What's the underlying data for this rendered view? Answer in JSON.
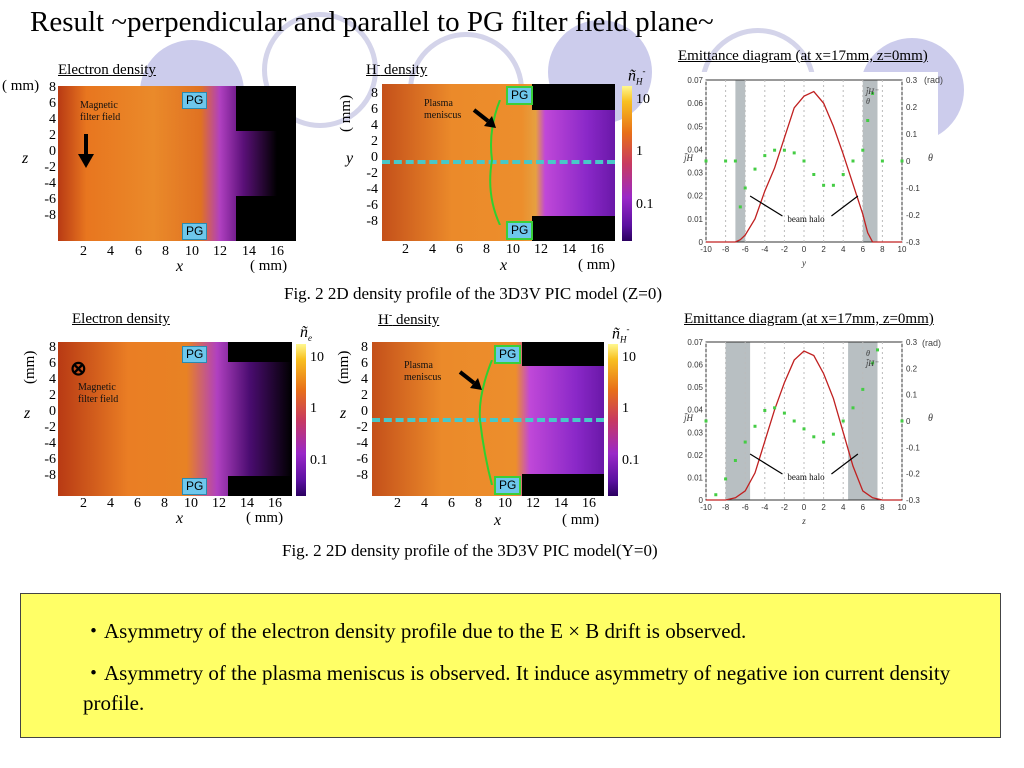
{
  "title": "Result ~perpendicular and parallel to PG filter field plane~",
  "top_row": {
    "electron": {
      "title": "Electron density",
      "unit_label": "( mm)",
      "x_label": "x",
      "x_unit": "( mm)",
      "y_label": "z",
      "annotation": [
        "Magnetic",
        "filter field"
      ],
      "pg_label": "PG",
      "x_ticks": [
        "2",
        "4",
        "6",
        "8",
        "10",
        "12",
        "14",
        "16"
      ],
      "y_ticks": [
        "8",
        "6",
        "4",
        "2",
        "0",
        "-2",
        "-4",
        "-6",
        "-8"
      ]
    },
    "hminus": {
      "title_main": "H",
      "title_sup": "-",
      "title_rest": " density",
      "y_unit": "( mm)",
      "y_label": "y",
      "x_label": "x",
      "x_unit": "( mm)",
      "annotation": [
        "Plasma",
        "meniscus"
      ],
      "pg_label": "PG",
      "colorbar_label": "ñ",
      "colorbar_sub": "H",
      "colorbar_sup": "-",
      "cb_ticks": [
        "10",
        "1",
        "0.1"
      ],
      "x_ticks": [
        "2",
        "4",
        "6",
        "8",
        "10",
        "12",
        "14",
        "16"
      ],
      "y_ticks": [
        "8",
        "6",
        "4",
        "2",
        "0",
        "-2",
        "-4",
        "-6",
        "-8"
      ]
    },
    "emittance": {
      "title": "Emittance diagram (at x=17mm, z=0mm)",
      "rad": "(rad)",
      "left_label": "j̃",
      "left_sub": "H",
      "right_label": "θ",
      "x_label": "y",
      "beam_halo": "beam halo",
      "left_ticks": [
        "0.07",
        "0.06",
        "0.05",
        "0.04",
        "0.03",
        "0.02",
        "0.01",
        "0"
      ],
      "right_ticks": [
        "0.3",
        "0.2",
        "0.1",
        "0",
        "-0.1",
        "-0.2",
        "-0.3"
      ],
      "x_ticks": [
        "-10",
        "-8",
        "-6",
        "-4",
        "-2",
        "0",
        "2",
        "4",
        "6",
        "8",
        "10"
      ],
      "legend": [
        "j̃H⁻",
        "θ"
      ]
    },
    "caption": "Fig. 2 2D density profile of the 3D3V PIC model (Z=0)"
  },
  "bottom_row": {
    "electron": {
      "title": "Electron density",
      "y_unit": "(mm)",
      "y_label": "z",
      "x_label": "x",
      "x_unit": "( mm)",
      "annotation": [
        "Magnetic",
        "filter field"
      ],
      "cross_symbol": "⊗",
      "pg_label": "PG",
      "colorbar_label": "ñ",
      "colorbar_sub": "e",
      "cb_ticks": [
        "10",
        "1",
        "0.1"
      ],
      "x_ticks": [
        "2",
        "4",
        "6",
        "8",
        "10",
        "12",
        "14",
        "16"
      ],
      "y_ticks": [
        "8",
        "6",
        "4",
        "2",
        "0",
        "-2",
        "-4",
        "-6",
        "-8"
      ]
    },
    "hminus": {
      "title_main": "H",
      "title_sup": "-",
      "title_rest": " density",
      "y_unit": "(mm)",
      "y_label": "z",
      "x_label": "x",
      "x_unit": "( mm)",
      "annotation": [
        "Plasma",
        "meniscus"
      ],
      "pg_label": "PG",
      "colorbar_label": "ñ",
      "colorbar_sub": "H",
      "colorbar_sup": "-",
      "cb_ticks": [
        "10",
        "1",
        "0.1"
      ],
      "x_ticks": [
        "2",
        "4",
        "6",
        "8",
        "10",
        "12",
        "14",
        "16"
      ],
      "y_ticks": [
        "8",
        "6",
        "4",
        "2",
        "0",
        "-2",
        "-4",
        "-6",
        "-8"
      ]
    },
    "emittance": {
      "title": "Emittance diagram (at x=17mm, z=0mm)",
      "rad": "(rad)",
      "left_label": "j̃",
      "left_sub": "H",
      "right_label": "θ",
      "x_label": "z",
      "beam_halo": "beam halo",
      "left_ticks": [
        "0.07",
        "0.06",
        "0.05",
        "0.04",
        "0.03",
        "0.02",
        "0.01",
        "0"
      ],
      "right_ticks": [
        "0.3",
        "0.2",
        "0.1",
        "0",
        "-0.1",
        "-0.2",
        "-0.3"
      ],
      "x_ticks": [
        "-10",
        "-8",
        "-6",
        "-4",
        "-2",
        "0",
        "2",
        "4",
        "6",
        "8",
        "10"
      ],
      "legend": [
        "θ",
        "j̃H⁻"
      ]
    },
    "caption": "Fig. 2 2D density profile of the 3D3V PIC model(Y=0)"
  },
  "bullets": [
    "・Asymmetry of the electron density profile due to the E × B drift is observed.",
    "・Asymmetry of the plasma meniscus is observed. It induce asymmetry of negative ion current density profile."
  ],
  "colors": {
    "title_deco": "#ccccec",
    "yellow_box": "#ffff66",
    "dashed_line": "#48c8c8",
    "pg_fill": "#6ec7ec",
    "current_curve": "#c02020",
    "theta_points": "#44cc44",
    "halo_band": "#9aa4a8"
  },
  "chart_data": [
    {
      "type": "line",
      "title": "Emittance diagram (at x=17mm, z=0mm)",
      "xlabel": "y",
      "ylabel": "j̃H⁻",
      "y2label": "θ (rad)",
      "xlim": [
        -10,
        10
      ],
      "ylim": [
        0,
        0.07
      ],
      "y2lim": [
        -0.3,
        0.3
      ],
      "series": [
        {
          "name": "j̃H⁻",
          "x": [
            -10,
            -8,
            -7,
            -6.5,
            -6,
            -5,
            -4,
            -3,
            -2,
            -1,
            0,
            1,
            2,
            3,
            4,
            5,
            6,
            6.5,
            7,
            8,
            10
          ],
          "values": [
            0,
            0,
            0,
            0.001,
            0.003,
            0.01,
            0.022,
            0.032,
            0.045,
            0.058,
            0.063,
            0.065,
            0.06,
            0.05,
            0.038,
            0.025,
            0.012,
            0.004,
            0,
            0,
            0
          ]
        },
        {
          "name": "θ",
          "x": [
            -10,
            -8,
            -7,
            -6.5,
            -6,
            -5,
            -4,
            -3,
            -2,
            -1,
            0,
            1,
            2,
            3,
            4,
            5,
            6,
            6.5,
            7,
            8,
            10
          ],
          "values": [
            0,
            0,
            0,
            -0.17,
            -0.1,
            -0.03,
            0.02,
            0.04,
            0.04,
            0.03,
            0.0,
            -0.05,
            -0.09,
            -0.09,
            -0.05,
            0.0,
            0.04,
            0.15,
            0.25,
            0,
            0
          ]
        }
      ]
    },
    {
      "type": "line",
      "title": "Emittance diagram (at x=17mm, z=0mm)",
      "xlabel": "z",
      "ylabel": "j̃H⁻",
      "y2label": "θ (rad)",
      "xlim": [
        -10,
        10
      ],
      "ylim": [
        0,
        0.07
      ],
      "y2lim": [
        -0.3,
        0.3
      ],
      "series": [
        {
          "name": "j̃H⁻",
          "x": [
            -10,
            -8,
            -7,
            -6,
            -5,
            -4,
            -3,
            -2,
            -1,
            0,
            1,
            2,
            3,
            4,
            5,
            6,
            7,
            8,
            10
          ],
          "values": [
            0,
            0,
            0.001,
            0.004,
            0.012,
            0.026,
            0.04,
            0.052,
            0.062,
            0.066,
            0.064,
            0.056,
            0.045,
            0.03,
            0.015,
            0.004,
            0.001,
            0,
            0
          ]
        },
        {
          "name": "θ",
          "x": [
            -10,
            -9,
            -8,
            -7,
            -6,
            -5,
            -4,
            -3,
            -2,
            -1,
            0,
            1,
            2,
            3,
            4,
            5,
            6,
            7,
            7.5,
            10
          ],
          "values": [
            0,
            -0.28,
            -0.22,
            -0.15,
            -0.08,
            -0.02,
            0.04,
            0.05,
            0.03,
            0.0,
            -0.03,
            -0.06,
            -0.08,
            -0.05,
            0.0,
            0.05,
            0.12,
            0.22,
            0.27,
            0
          ]
        }
      ]
    }
  ]
}
